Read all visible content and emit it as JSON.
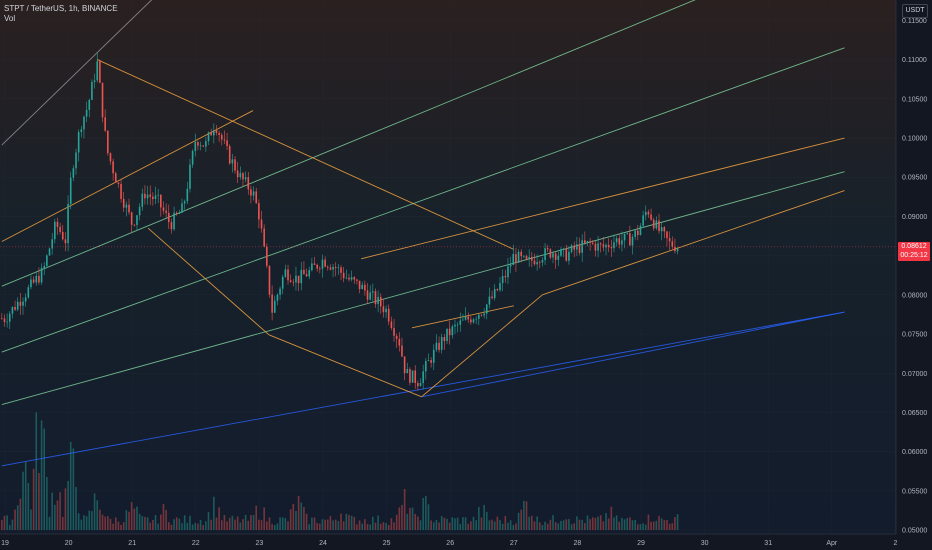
{
  "header": {
    "symbol_line": "STPT / TetherUS, 1h, BINANCE",
    "volume_label": "Vol"
  },
  "price_scale": {
    "unit": "USDT",
    "current_price_top": "0.08612",
    "current_price_bottom": "00:25:12"
  },
  "colors": {
    "background": "#131722",
    "up_candle": "#26a69a",
    "down_candle": "#ef5350",
    "channel_orange": "#f7a541",
    "fib_green": "#7ecf9b",
    "fib_blue": "#2962ff",
    "fan_white": "#d1d4dc"
  },
  "chart_data": {
    "type": "candlestick",
    "symbol": "STPT / TetherUS",
    "interval": "1h",
    "exchange": "BINANCE",
    "x_ticks": [
      "19",
      "20",
      "21",
      "22",
      "23",
      "24",
      "25",
      "26",
      "27",
      "28",
      "29",
      "30",
      "31",
      "Apr",
      "2"
    ],
    "y_ticks": [
      "0.11500",
      "0.11000",
      "0.10500",
      "0.10000",
      "0.09500",
      "0.09000",
      "0.08500",
      "0.08000",
      "0.07500",
      "0.07000",
      "0.06500",
      "0.06000",
      "0.05500",
      "0.05000"
    ],
    "ylim": [
      0.0495,
      0.1176
    ],
    "current_price": 0.08612,
    "price_series": [
      [
        19.0,
        0.077
      ],
      [
        19.3,
        0.08
      ],
      [
        19.6,
        0.083
      ],
      [
        19.8,
        0.089
      ],
      [
        19.95,
        0.087
      ],
      [
        20.05,
        0.096
      ],
      [
        20.2,
        0.102
      ],
      [
        20.3,
        0.104
      ],
      [
        20.45,
        0.1095
      ],
      [
        20.6,
        0.0985
      ],
      [
        20.8,
        0.0935
      ],
      [
        21.0,
        0.089
      ],
      [
        21.2,
        0.093
      ],
      [
        21.4,
        0.092
      ],
      [
        21.6,
        0.089
      ],
      [
        21.8,
        0.091
      ],
      [
        22.0,
        0.1
      ],
      [
        22.15,
        0.099
      ],
      [
        22.3,
        0.102
      ],
      [
        22.5,
        0.098
      ],
      [
        22.7,
        0.095
      ],
      [
        22.9,
        0.093
      ],
      [
        23.0,
        0.09
      ],
      [
        23.2,
        0.078
      ],
      [
        23.4,
        0.083
      ],
      [
        23.6,
        0.082
      ],
      [
        23.8,
        0.083
      ],
      [
        24.0,
        0.0845
      ],
      [
        24.2,
        0.0835
      ],
      [
        24.4,
        0.082
      ],
      [
        24.6,
        0.081
      ],
      [
        24.8,
        0.0795
      ],
      [
        25.0,
        0.078
      ],
      [
        25.2,
        0.074
      ],
      [
        25.3,
        0.07
      ],
      [
        25.5,
        0.069
      ],
      [
        25.7,
        0.072
      ],
      [
        25.9,
        0.0745
      ],
      [
        26.1,
        0.076
      ],
      [
        26.3,
        0.077
      ],
      [
        26.5,
        0.078
      ],
      [
        26.7,
        0.08
      ],
      [
        26.9,
        0.083
      ],
      [
        27.0,
        0.085
      ],
      [
        27.2,
        0.084
      ],
      [
        27.4,
        0.085
      ],
      [
        27.6,
        0.0855
      ],
      [
        27.8,
        0.085
      ],
      [
        28.0,
        0.086
      ],
      [
        28.2,
        0.0865
      ],
      [
        28.4,
        0.086
      ],
      [
        28.6,
        0.087
      ],
      [
        28.8,
        0.087
      ],
      [
        28.95,
        0.088
      ],
      [
        29.1,
        0.091
      ],
      [
        29.25,
        0.0885
      ],
      [
        29.45,
        0.0865
      ],
      [
        29.6,
        0.0861
      ]
    ],
    "volume_series": [
      [
        19.3,
        0.55
      ],
      [
        19.55,
        0.95
      ],
      [
        19.8,
        0.35
      ],
      [
        20.05,
        0.55
      ],
      [
        20.45,
        0.25
      ],
      [
        21.0,
        0.15
      ],
      [
        21.5,
        0.12
      ],
      [
        22.3,
        0.18
      ],
      [
        23.0,
        0.14
      ],
      [
        23.6,
        0.2
      ],
      [
        24.3,
        0.12
      ],
      [
        25.3,
        0.22
      ],
      [
        25.6,
        0.18
      ],
      [
        26.5,
        0.12
      ],
      [
        27.2,
        0.2
      ],
      [
        27.8,
        0.1
      ],
      [
        28.5,
        0.1
      ],
      [
        29.2,
        0.08
      ],
      [
        29.6,
        0.05
      ]
    ],
    "overlays": [
      {
        "kind": "line",
        "role": "fan",
        "from": [
          18.95,
          0.0991
        ],
        "to": [
          21.8,
          0.1215
        ]
      },
      {
        "kind": "line",
        "role": "channel",
        "from": [
          18.95,
          0.0868
        ],
        "to": [
          22.9,
          0.1035
        ]
      },
      {
        "kind": "line",
        "role": "fib",
        "from": [
          18.95,
          0.0811
        ],
        "to": [
          30.5,
          0.1198
        ]
      },
      {
        "kind": "line",
        "role": "fib",
        "from": [
          18.95,
          0.0727
        ],
        "to": [
          32.2,
          0.1115
        ]
      },
      {
        "kind": "line",
        "role": "fib",
        "from": [
          18.95,
          0.066
        ],
        "to": [
          32.2,
          0.0957
        ]
      },
      {
        "kind": "line",
        "role": "fib_blue",
        "from": [
          18.95,
          0.0582
        ],
        "to": [
          32.2,
          0.0778
        ]
      },
      {
        "kind": "line",
        "role": "channel",
        "from": [
          20.45,
          0.11
        ],
        "to": [
          27.0,
          0.0858
        ]
      },
      {
        "kind": "line",
        "role": "channel",
        "from": [
          21.25,
          0.0885
        ],
        "to": [
          23.15,
          0.0749
        ]
      },
      {
        "kind": "line",
        "role": "channel",
        "from": [
          23.15,
          0.0749
        ],
        "to": [
          25.55,
          0.067
        ]
      },
      {
        "kind": "line",
        "role": "channel",
        "from": [
          25.55,
          0.067
        ],
        "to": [
          27.45,
          0.08
        ]
      },
      {
        "kind": "line",
        "role": "channel",
        "from": [
          25.4,
          0.0758
        ],
        "to": [
          27.0,
          0.0786
        ]
      },
      {
        "kind": "line",
        "role": "channel",
        "from": [
          24.6,
          0.0846
        ],
        "to": [
          32.2,
          0.1
        ]
      },
      {
        "kind": "line",
        "role": "channel",
        "from": [
          27.45,
          0.08
        ],
        "to": [
          32.2,
          0.0933
        ]
      },
      {
        "kind": "line",
        "role": "fib_blue",
        "from": [
          25.55,
          0.067
        ],
        "to": [
          32.2,
          0.0778
        ]
      }
    ]
  }
}
